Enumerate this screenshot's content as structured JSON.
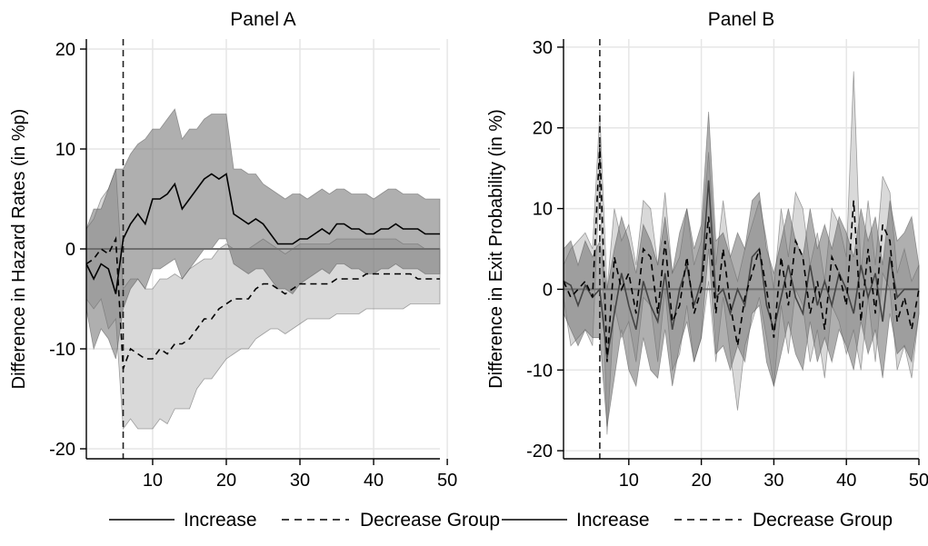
{
  "chart_data": [
    {
      "type": "line",
      "title": "Panel A",
      "xlabel": "",
      "ylabel": "Difference in Hazard Rates (in %p)",
      "xlim": [
        1,
        49
      ],
      "ylim": [
        -21,
        21
      ],
      "xticks": [
        10,
        20,
        30,
        40,
        50
      ],
      "yticks": [
        -20,
        -10,
        0,
        10,
        20
      ],
      "event_line_x": 6,
      "grid": true,
      "legend": "bottom",
      "x": [
        1,
        2,
        3,
        4,
        5,
        6,
        7,
        8,
        9,
        10,
        11,
        12,
        13,
        14,
        15,
        16,
        17,
        18,
        19,
        20,
        21,
        22,
        23,
        24,
        25,
        26,
        27,
        28,
        29,
        30,
        31,
        32,
        33,
        34,
        35,
        36,
        37,
        38,
        39,
        40,
        41,
        42,
        43,
        44,
        45,
        46,
        47,
        48,
        49
      ],
      "series": [
        {
          "name": "Increase",
          "style": "solid",
          "values": [
            -1.5,
            -3,
            -1.5,
            -2,
            -4.5,
            1,
            2.5,
            3.5,
            2.5,
            5,
            5,
            5.5,
            6.5,
            4,
            5,
            6,
            7,
            7.5,
            7,
            7.5,
            3.5,
            3,
            2.5,
            3,
            2.5,
            1.5,
            0.5,
            0.5,
            0.5,
            1,
            1,
            1.5,
            2,
            1.5,
            2.5,
            2.5,
            2,
            2,
            1.5,
            1.5,
            2,
            2,
            2.5,
            2,
            2,
            2,
            1.5,
            1.5,
            1.5
          ],
          "ci_upper": [
            2,
            4,
            4,
            6,
            8,
            8,
            9.5,
            10.5,
            11,
            12,
            12,
            13,
            14,
            11,
            12,
            12,
            13,
            13.5,
            13.5,
            13.5,
            8,
            8,
            7.5,
            7.5,
            6.5,
            6,
            5.5,
            5,
            5.5,
            5.5,
            5,
            5.5,
            6,
            5.5,
            6,
            6,
            5.5,
            5.5,
            5.5,
            5,
            5.5,
            6,
            6,
            5.5,
            5.5,
            5.5,
            5,
            5,
            5
          ],
          "ci_lower": [
            -6,
            -10,
            -8,
            -9,
            -11,
            -6,
            -4,
            -3,
            -4,
            -2,
            -2,
            -1.5,
            -1,
            -3,
            -2,
            -1,
            0,
            0,
            1,
            1,
            -1.5,
            -2,
            -2.5,
            -2,
            -2,
            -3,
            -4,
            -4,
            -4.5,
            -3.5,
            -3,
            -2.5,
            -2,
            -2.5,
            -1.5,
            -1.5,
            -2,
            -2,
            -2.5,
            -2.5,
            -2,
            -2,
            -1.5,
            -2,
            -2,
            -2,
            -2.5,
            -2.5,
            -2.5
          ]
        },
        {
          "name": "Decrease Group",
          "style": "dashed",
          "values": [
            -1.5,
            -1,
            0,
            -0.5,
            1,
            -12,
            -10,
            -10.5,
            -11,
            -11,
            -10,
            -10.5,
            -9.5,
            -9.5,
            -9,
            -8,
            -7,
            -7,
            -6,
            -5.5,
            -5,
            -5,
            -5,
            -4,
            -3.5,
            -3.5,
            -4,
            -4.5,
            -4,
            -3.5,
            -3.5,
            -3.5,
            -3.5,
            -3.5,
            -3,
            -3,
            -3,
            -3,
            -2.5,
            -2.5,
            -2.5,
            -2.5,
            -2.5,
            -2.5,
            -2.5,
            -3,
            -3,
            -3,
            -3
          ],
          "ci_upper": [
            2,
            3,
            5,
            6,
            8,
            -4,
            -3,
            -3,
            -4,
            -4,
            -3,
            -3,
            -2.5,
            -3,
            -2,
            -1.5,
            -1,
            -1,
            0,
            0.5,
            0,
            0,
            0,
            0.5,
            1,
            0.5,
            0,
            -0.5,
            0,
            0.5,
            0.5,
            0.5,
            0.5,
            0.5,
            1,
            1,
            1,
            1,
            1,
            1,
            1,
            1,
            1,
            0.5,
            0.5,
            0.5,
            0,
            0,
            0
          ],
          "ci_lower": [
            -5,
            -6,
            -5,
            -8,
            -7,
            -18,
            -17,
            -18,
            -18,
            -18,
            -17,
            -17.5,
            -16,
            -16,
            -16,
            -14,
            -13,
            -13,
            -12,
            -11,
            -10.5,
            -10,
            -10,
            -9,
            -8.5,
            -8,
            -8,
            -8.5,
            -8,
            -7.5,
            -7,
            -7,
            -7,
            -7,
            -6.5,
            -6.5,
            -6.5,
            -6.5,
            -6,
            -6,
            -6,
            -6,
            -6,
            -6,
            -5.5,
            -5.5,
            -5.5,
            -5.5,
            -5.5
          ]
        }
      ]
    },
    {
      "type": "line",
      "title": "Panel B",
      "xlabel": "",
      "ylabel": "Difference in Exit Probability (in %)",
      "xlim": [
        1,
        50
      ],
      "ylim": [
        -21,
        31
      ],
      "xticks": [
        10,
        20,
        30,
        40,
        50
      ],
      "yticks": [
        -20,
        -10,
        0,
        10,
        20,
        30
      ],
      "event_line_x": 6,
      "grid": true,
      "legend": "bottom",
      "x": [
        1,
        2,
        3,
        4,
        5,
        6,
        7,
        8,
        9,
        10,
        11,
        12,
        13,
        14,
        15,
        16,
        17,
        18,
        19,
        20,
        21,
        22,
        23,
        24,
        25,
        26,
        27,
        28,
        29,
        30,
        31,
        32,
        33,
        34,
        35,
        36,
        37,
        38,
        39,
        40,
        41,
        42,
        43,
        44,
        45,
        46,
        47,
        48,
        49,
        50
      ],
      "series": [
        {
          "name": "Increase",
          "style": "solid",
          "values": [
            1,
            0.5,
            -2,
            0.5,
            -1,
            0,
            -8.5,
            -3,
            2,
            -2,
            -5,
            1,
            -2,
            -4,
            2,
            -5,
            0,
            3,
            -2,
            1,
            13.5,
            -1,
            0,
            -3,
            0,
            -2,
            4,
            5,
            -2,
            -5,
            -1,
            3,
            -1,
            -3,
            3,
            -2,
            1,
            -2,
            2,
            0,
            -3,
            3,
            -1,
            2,
            -4,
            4,
            -1,
            0,
            0,
            0
          ],
          "ci_upper": [
            5,
            6,
            3,
            6,
            4,
            6,
            0,
            5,
            9,
            6,
            2,
            8,
            6,
            3,
            9,
            2,
            7,
            10,
            5,
            8,
            22,
            6,
            7,
            4,
            7,
            5,
            11,
            12,
            5,
            2,
            6,
            10,
            6,
            4,
            10,
            5,
            8,
            5,
            9,
            7,
            4,
            10,
            6,
            9,
            3,
            11,
            6,
            7,
            9,
            3
          ],
          "ci_lower": [
            -3,
            -5,
            -7,
            -5,
            -6,
            -6,
            -17,
            -11,
            -5,
            -10,
            -12,
            -6,
            -10,
            -11,
            -5,
            -12,
            -7,
            -4,
            -9,
            -6,
            5,
            -8,
            -7,
            -10,
            -7,
            -9,
            -3,
            -2,
            -9,
            -12,
            -8,
            -4,
            -8,
            -10,
            -4,
            -9,
            -6,
            -9,
            -5,
            -7,
            -10,
            -4,
            -8,
            -5,
            -11,
            -3,
            -8,
            -7,
            -9,
            -3
          ]
        },
        {
          "name": "Decrease Group",
          "style": "dashed",
          "values": [
            1,
            -1,
            0,
            1,
            -1,
            18,
            -9,
            4,
            0,
            2,
            -3,
            5,
            4,
            -3,
            6,
            -4,
            -2,
            4,
            -3,
            0,
            9,
            -3,
            5,
            -2,
            -7,
            -1,
            2,
            5,
            0,
            -6,
            4,
            -2,
            6,
            4,
            -3,
            1,
            -5,
            4,
            2,
            -2,
            11,
            -4,
            5,
            -3,
            8,
            6,
            -4,
            -1,
            -5,
            0
          ],
          "ci_upper": [
            3,
            5,
            6,
            7,
            5,
            22,
            0,
            10,
            6,
            8,
            3,
            11,
            10,
            3,
            12,
            2,
            4,
            10,
            3,
            6,
            17,
            3,
            11,
            4,
            1,
            5,
            8,
            11,
            6,
            0,
            10,
            4,
            12,
            10,
            3,
            7,
            1,
            10,
            8,
            4,
            27,
            2,
            11,
            3,
            14,
            12,
            2,
            5,
            1,
            3
          ],
          "ci_lower": [
            -1,
            -7,
            -6,
            -5,
            -7,
            14,
            -18,
            -2,
            -6,
            -4,
            -9,
            -1,
            -2,
            -9,
            0,
            -10,
            -8,
            -2,
            -9,
            -6,
            1,
            -9,
            -1,
            -8,
            -15,
            -7,
            -4,
            -1,
            -6,
            -12,
            -2,
            -8,
            0,
            -2,
            -9,
            -5,
            -11,
            -2,
            -4,
            -8,
            -5,
            -10,
            -1,
            -9,
            2,
            0,
            -10,
            -7,
            -11,
            -3
          ]
        }
      ]
    }
  ]
}
